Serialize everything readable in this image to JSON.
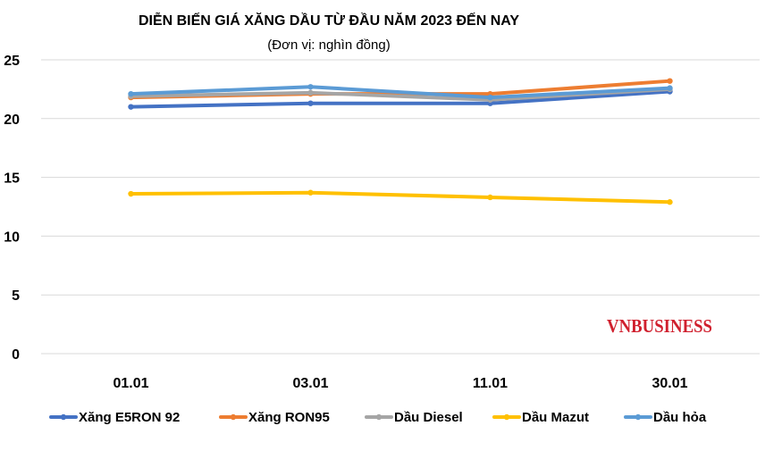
{
  "chart_data": {
    "type": "line",
    "title": "DIỄN BIẾN GIÁ XĂNG DẦU TỪ ĐẦU NĂM 2023 ĐẾN NAY",
    "subtitle": "(Đơn vị: nghìn đồng)",
    "watermark": "VNBUSINESS",
    "categories": [
      "01.01",
      "03.01",
      "11.01",
      "30.01"
    ],
    "yticks": [
      "0",
      "5",
      "10",
      "15",
      "20",
      "25"
    ],
    "ylim": [
      0,
      25
    ],
    "grid": true,
    "legend_position": "bottom",
    "series": [
      {
        "name": "Xăng E5RON 92",
        "color": "#4472c4",
        "values": [
          21.0,
          21.3,
          21.3,
          22.3
        ]
      },
      {
        "name": "Xăng RON95",
        "color": "#ed7d31",
        "values": [
          21.8,
          22.1,
          22.1,
          23.2
        ]
      },
      {
        "name": "Dầu Diesel",
        "color": "#a5a5a5",
        "values": [
          21.9,
          22.2,
          21.6,
          22.5
        ]
      },
      {
        "name": "Dầu Mazut",
        "color": "#ffc000",
        "values": [
          13.6,
          13.7,
          13.3,
          12.9
        ]
      },
      {
        "name": "Dầu hỏa",
        "color": "#5b9bd5",
        "values": [
          22.1,
          22.7,
          21.8,
          22.6
        ]
      }
    ]
  }
}
